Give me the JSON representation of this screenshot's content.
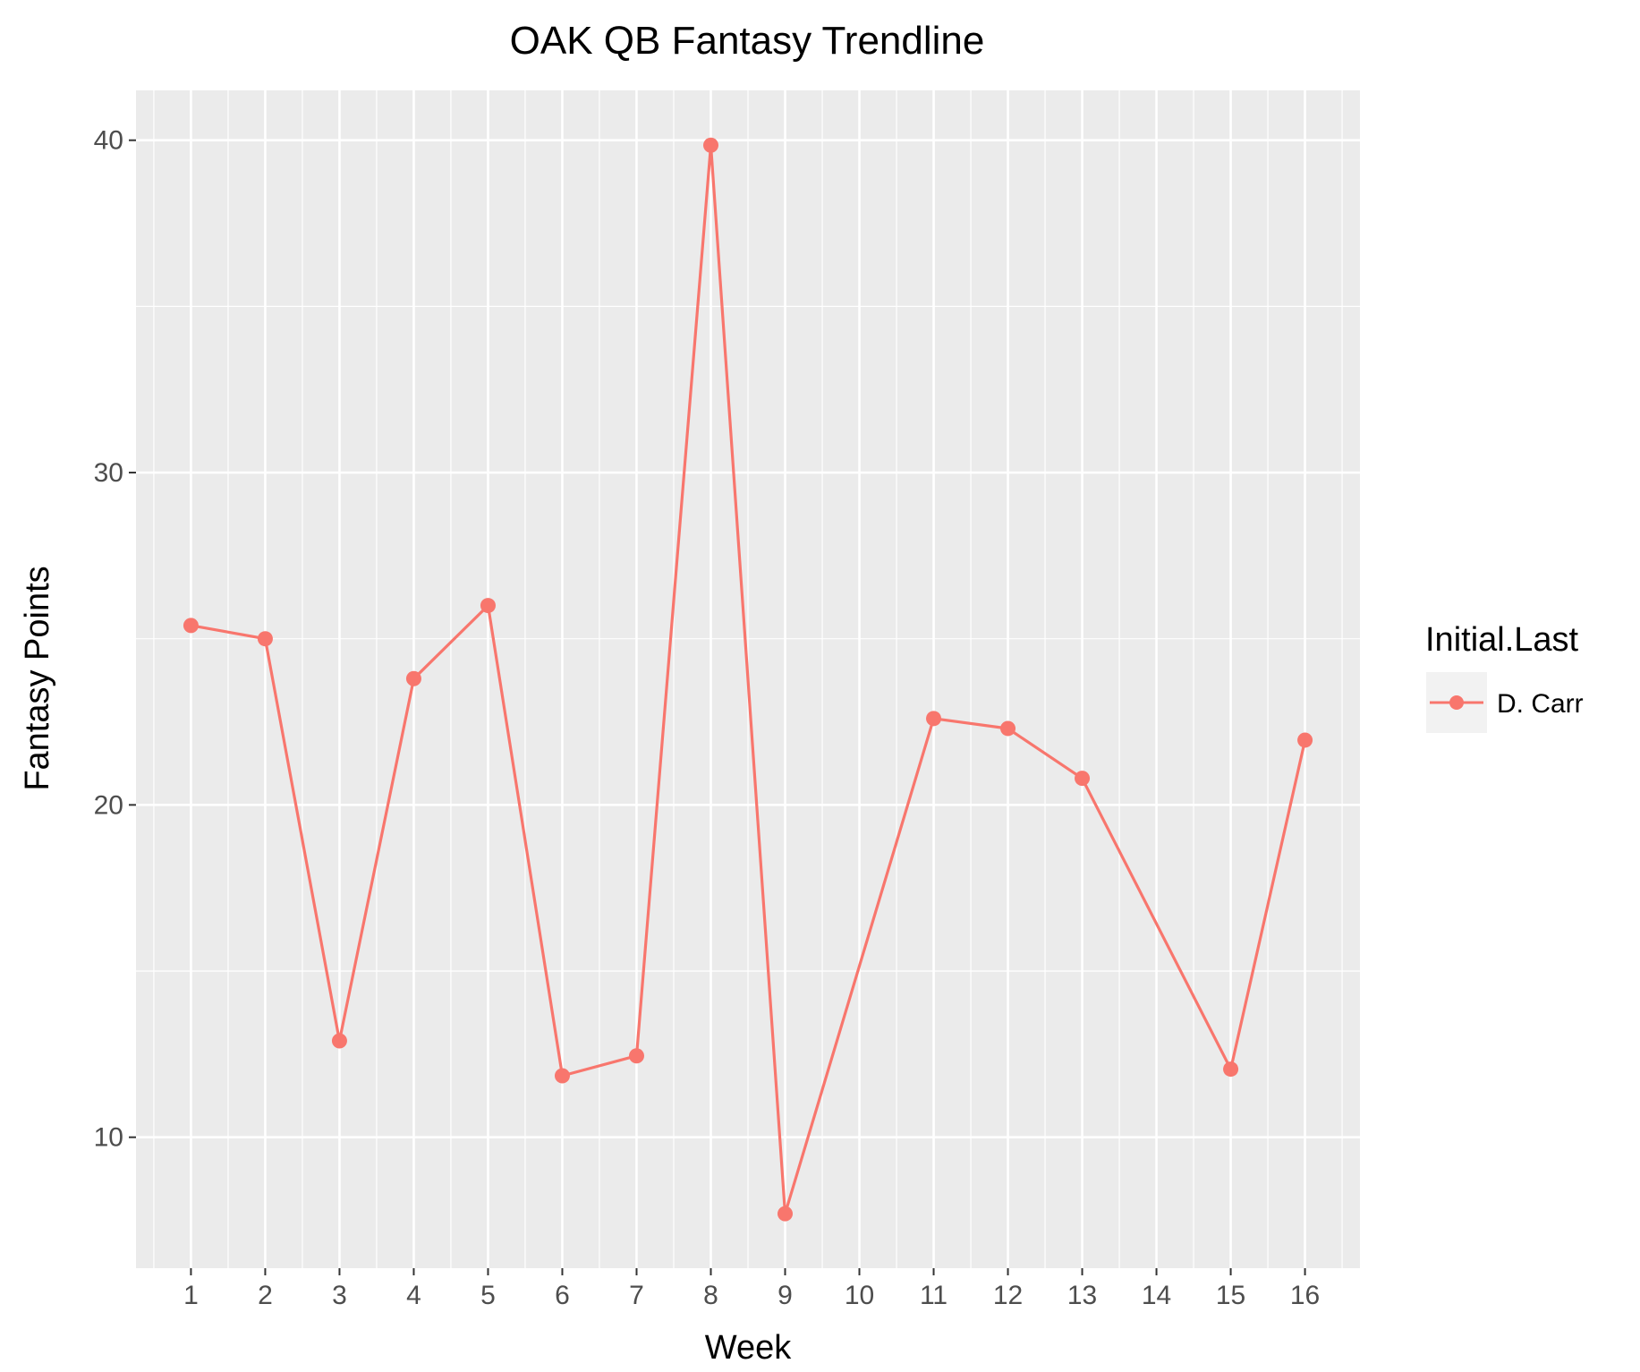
{
  "chart_data": {
    "type": "line",
    "title": "OAK QB Fantasy Trendline",
    "xlabel": "Week",
    "ylabel": "Fantasy Points",
    "x": [
      1,
      2,
      3,
      4,
      5,
      6,
      7,
      8,
      9,
      11,
      12,
      13,
      15,
      16
    ],
    "x_ticks": [
      1,
      2,
      3,
      4,
      5,
      6,
      7,
      8,
      9,
      10,
      11,
      12,
      13,
      14,
      15,
      16
    ],
    "xlim": [
      0.26,
      16.74
    ],
    "y_ticks": [
      10,
      20,
      30,
      40
    ],
    "ylim": [
      6.06,
      41.5
    ],
    "grid": true,
    "legend": {
      "title": "Initial.Last",
      "placement": "right"
    },
    "series": [
      {
        "name": "D. Carr",
        "color": "#f8766d",
        "values": [
          25.4,
          25.0,
          12.9,
          23.8,
          26.0,
          11.85,
          12.45,
          39.85,
          7.7,
          22.6,
          22.3,
          20.8,
          12.05,
          21.95
        ]
      }
    ]
  }
}
